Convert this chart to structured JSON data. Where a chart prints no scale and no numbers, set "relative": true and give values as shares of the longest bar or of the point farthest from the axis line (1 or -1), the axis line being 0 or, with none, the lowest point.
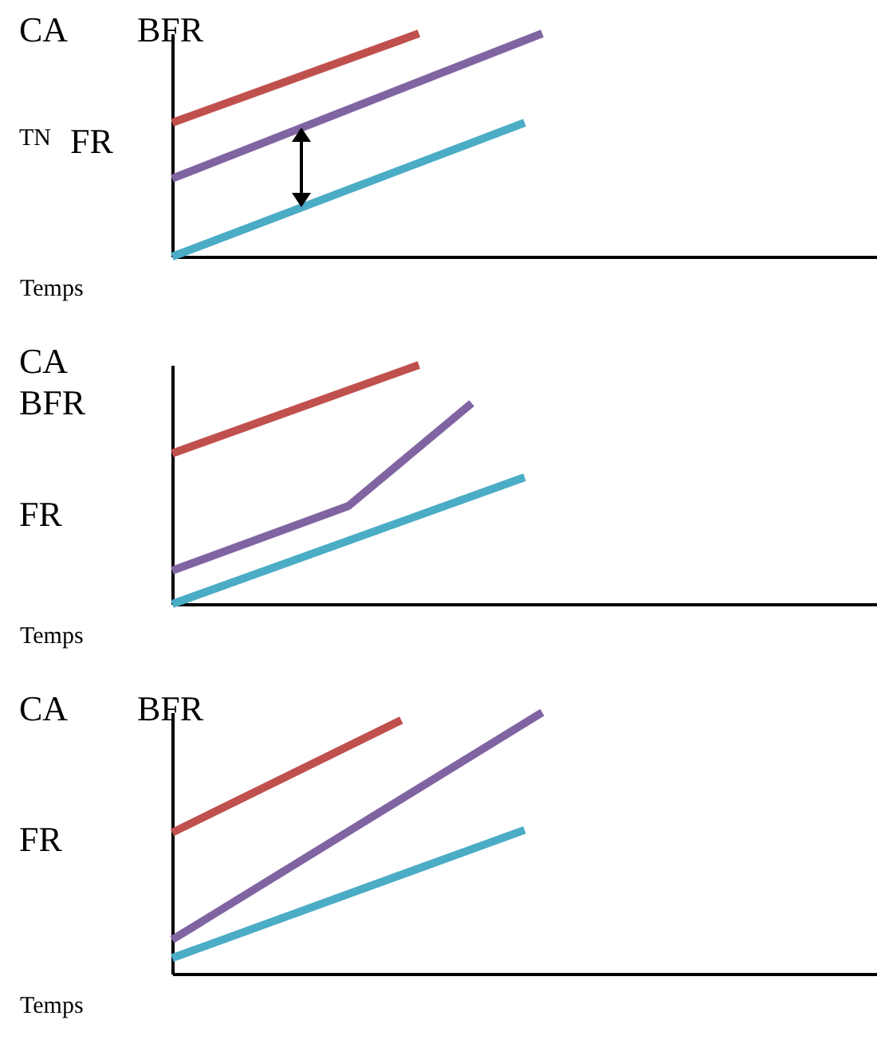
{
  "chart_data": [
    {
      "type": "line",
      "relative": true,
      "xlabel": "Temps",
      "annotations": [
        "CA",
        "BFR",
        "TN",
        "FR"
      ],
      "categories": [
        null,
        null,
        null,
        null,
        null,
        null,
        null,
        null,
        null,
        null,
        null,
        null,
        null,
        null,
        null,
        null,
        null,
        null,
        null,
        null,
        null,
        null,
        null,
        null,
        null,
        null,
        null,
        null,
        null,
        null,
        null,
        null,
        null,
        null,
        null,
        null,
        null,
        null,
        null,
        null,
        null
      ],
      "series": [
        {
          "color": "#c0504d",
          "values": [
            0.6,
            null,
            null,
            null,
            null,
            null,
            null,
            null,
            null,
            null,
            null,
            null,
            null,
            null,
            1,
            null,
            null,
            null,
            null,
            null,
            null,
            null,
            null,
            null,
            null,
            null,
            null,
            null,
            null,
            null,
            null,
            null,
            null,
            null,
            null,
            null,
            null,
            null,
            null,
            null,
            null
          ]
        },
        {
          "color": "#8064a2",
          "values": [
            0.35,
            null,
            null,
            null,
            null,
            null,
            null,
            null,
            null,
            null,
            null,
            null,
            null,
            null,
            null,
            null,
            null,
            null,
            null,
            null,
            null,
            1,
            null,
            null,
            null,
            null,
            null,
            null,
            null,
            null,
            null,
            null,
            null,
            null,
            null,
            null,
            null,
            null,
            null,
            null,
            null
          ]
        },
        {
          "color": "#4bacc6",
          "values": [
            0,
            null,
            null,
            null,
            null,
            null,
            null,
            null,
            null,
            null,
            null,
            null,
            null,
            null,
            null,
            null,
            null,
            null,
            null,
            null,
            0.6,
            null,
            null,
            null,
            null,
            null,
            null,
            null,
            null,
            null,
            null,
            null,
            null,
            null,
            null,
            null,
            null,
            null,
            null,
            null,
            null
          ]
        }
      ]
    },
    {
      "type": "line",
      "relative": true,
      "xlabel": "Temps",
      "annotations": [
        "CA",
        "BFR",
        "FR"
      ],
      "categories": [
        null,
        null,
        null,
        null,
        null,
        null,
        null,
        null,
        null,
        null,
        null,
        null,
        null,
        null,
        null,
        null,
        null,
        null,
        null,
        null,
        null,
        null,
        null,
        null,
        null,
        null,
        null,
        null,
        null,
        null,
        null,
        null,
        null,
        null,
        null,
        null,
        null,
        null,
        null,
        null,
        null
      ],
      "series": [
        {
          "color": "#c0504d",
          "values": [
            0.63,
            null,
            null,
            null,
            null,
            null,
            null,
            null,
            null,
            null,
            null,
            null,
            null,
            null,
            1,
            null,
            null,
            null,
            null,
            null,
            null,
            null,
            null,
            null,
            null,
            null,
            null,
            null,
            null,
            null,
            null,
            null,
            null,
            null,
            null,
            null,
            null,
            null,
            null,
            null,
            null
          ]
        },
        {
          "color": "#8064a2",
          "values": [
            0.14,
            null,
            null,
            null,
            null,
            null,
            null,
            null,
            null,
            null,
            0.41,
            null,
            null,
            null,
            null,
            null,
            null,
            0.84,
            null,
            null,
            null,
            null,
            null,
            null,
            null,
            null,
            null,
            null,
            null,
            null,
            null,
            null,
            null,
            null,
            null,
            null,
            null,
            null,
            null,
            null,
            null
          ]
        },
        {
          "color": "#4bacc6",
          "values": [
            0,
            null,
            null,
            null,
            null,
            null,
            null,
            null,
            null,
            null,
            null,
            null,
            null,
            null,
            null,
            null,
            null,
            null,
            null,
            null,
            0.53,
            null,
            null,
            null,
            null,
            null,
            null,
            null,
            null,
            null,
            null,
            null,
            null,
            null,
            null,
            null,
            null,
            null,
            null,
            null,
            null
          ]
        }
      ]
    },
    {
      "type": "line",
      "relative": true,
      "xlabel": "Temps",
      "annotations": [
        "CA",
        "BFR",
        "FR"
      ],
      "categories": [
        null,
        null,
        null,
        null,
        null,
        null,
        null,
        null,
        null,
        null,
        null,
        null,
        null,
        null,
        null,
        null,
        null,
        null,
        null,
        null,
        null,
        null,
        null,
        null,
        null,
        null,
        null,
        null,
        null,
        null,
        null,
        null,
        null,
        null,
        null,
        null,
        null,
        null,
        null,
        null,
        null
      ],
      "series": [
        {
          "color": "#c0504d",
          "values": [
            0.54,
            null,
            null,
            null,
            null,
            null,
            null,
            null,
            null,
            null,
            null,
            null,
            null,
            0.97,
            null,
            null,
            null,
            null,
            null,
            null,
            null,
            null,
            null,
            null,
            null,
            null,
            null,
            null,
            null,
            null,
            null,
            null,
            null,
            null,
            null,
            null,
            null,
            null,
            null,
            null,
            null
          ]
        },
        {
          "color": "#8064a2",
          "values": [
            0.13,
            null,
            null,
            null,
            null,
            null,
            null,
            null,
            null,
            null,
            null,
            null,
            null,
            null,
            null,
            null,
            null,
            null,
            null,
            null,
            null,
            1,
            null,
            null,
            null,
            null,
            null,
            null,
            null,
            null,
            null,
            null,
            null,
            null,
            null,
            null,
            null,
            null,
            null,
            null,
            null
          ]
        },
        {
          "color": "#4bacc6",
          "values": [
            0.06,
            null,
            null,
            null,
            null,
            null,
            null,
            null,
            null,
            null,
            null,
            null,
            null,
            null,
            null,
            null,
            null,
            null,
            null,
            null,
            0.55,
            null,
            null,
            null,
            null,
            null,
            null,
            null,
            null,
            null,
            null,
            null,
            null,
            null,
            null,
            null,
            null,
            null,
            null,
            null,
            null
          ]
        }
      ]
    }
  ]
}
